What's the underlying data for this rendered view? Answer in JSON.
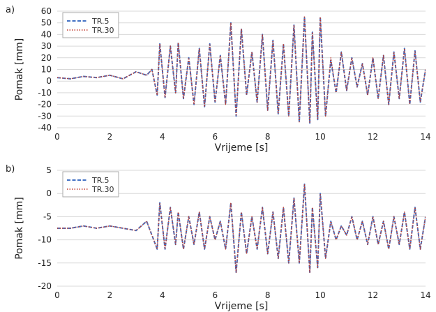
{
  "chart_data": [
    {
      "type": "line",
      "panel_label": "a)",
      "xlabel": "Vrijeme [s]",
      "ylabel": "Pomak [mm]",
      "xlim": [
        0,
        14
      ],
      "ylim": [
        -40,
        60
      ],
      "xticks": [
        0,
        2,
        4,
        6,
        8,
        10,
        12,
        14
      ],
      "yticks": [
        -40,
        -30,
        -20,
        -10,
        0,
        10,
        20,
        30,
        40,
        50,
        60
      ],
      "grid": "horizontal",
      "legend": "top-left",
      "series": [
        {
          "name": "TR.5",
          "color": "#4472c4",
          "style": "dashed",
          "x": [
            0,
            0.5,
            1,
            1.5,
            2,
            2.5,
            3,
            3.4,
            3.6,
            3.8,
            3.9,
            4.1,
            4.3,
            4.5,
            4.6,
            4.8,
            5.0,
            5.2,
            5.4,
            5.6,
            5.8,
            6.0,
            6.2,
            6.4,
            6.6,
            6.8,
            7.0,
            7.2,
            7.4,
            7.6,
            7.8,
            8.0,
            8.2,
            8.4,
            8.6,
            8.8,
            9.0,
            9.2,
            9.4,
            9.6,
            9.7,
            9.9,
            10.0,
            10.2,
            10.4,
            10.6,
            10.8,
            11.0,
            11.2,
            11.4,
            11.6,
            11.8,
            12.0,
            12.2,
            12.4,
            12.6,
            12.8,
            13.0,
            13.2,
            13.4,
            13.6,
            13.8,
            14.0
          ],
          "y": [
            3,
            2,
            4,
            3,
            5,
            2,
            8,
            5,
            10,
            -12,
            32,
            -14,
            30,
            -10,
            33,
            -15,
            20,
            -20,
            28,
            -22,
            32,
            -18,
            22,
            -20,
            50,
            -30,
            45,
            -12,
            25,
            -18,
            40,
            -25,
            35,
            -28,
            32,
            -30,
            48,
            -35,
            55,
            -36,
            42,
            -33,
            55,
            -30,
            18,
            -10,
            25,
            -8,
            20,
            -5,
            15,
            -12,
            20,
            -15,
            22,
            -20,
            25,
            -15,
            28,
            -20,
            26,
            -18,
            10
          ]
        },
        {
          "name": "TR.30",
          "color": "#c0392b",
          "style": "dotted",
          "x": [
            0,
            0.5,
            1,
            1.5,
            2,
            2.5,
            3,
            3.4,
            3.6,
            3.8,
            3.9,
            4.1,
            4.3,
            4.5,
            4.6,
            4.8,
            5.0,
            5.2,
            5.4,
            5.6,
            5.8,
            6.0,
            6.2,
            6.4,
            6.6,
            6.8,
            7.0,
            7.2,
            7.4,
            7.6,
            7.8,
            8.0,
            8.2,
            8.4,
            8.6,
            8.8,
            9.0,
            9.2,
            9.4,
            9.6,
            9.7,
            9.9,
            10.0,
            10.2,
            10.4,
            10.6,
            10.8,
            11.0,
            11.2,
            11.4,
            11.6,
            11.8,
            12.0,
            12.2,
            12.4,
            12.6,
            12.8,
            13.0,
            13.2,
            13.4,
            13.6,
            13.8,
            14.0
          ],
          "y": [
            3,
            2,
            4,
            3,
            5,
            2,
            8,
            5,
            10,
            -12,
            32,
            -14,
            30,
            -10,
            33,
            -15,
            20,
            -20,
            28,
            -22,
            32,
            -18,
            22,
            -20,
            50,
            -30,
            45,
            -12,
            25,
            -18,
            40,
            -25,
            35,
            -28,
            32,
            -30,
            48,
            -35,
            56,
            -36,
            42,
            -33,
            55,
            -30,
            20,
            -10,
            25,
            -8,
            20,
            -5,
            15,
            -12,
            20,
            -15,
            22,
            -20,
            25,
            -15,
            28,
            -20,
            26,
            -18,
            10
          ]
        }
      ]
    },
    {
      "type": "line",
      "panel_label": "b)",
      "xlabel": "Vrijeme [s]",
      "ylabel": "Pomak [mm]",
      "xlim": [
        0,
        14
      ],
      "ylim": [
        -20,
        5
      ],
      "xticks": [
        0,
        2,
        4,
        6,
        8,
        10,
        12,
        14
      ],
      "yticks": [
        -20,
        -15,
        -10,
        -5,
        0,
        5
      ],
      "grid": "horizontal",
      "legend": "top-left",
      "series": [
        {
          "name": "TR.5",
          "color": "#4472c4",
          "style": "dashed",
          "x": [
            0,
            0.5,
            1,
            1.5,
            2,
            2.5,
            3,
            3.4,
            3.6,
            3.8,
            3.9,
            4.1,
            4.3,
            4.5,
            4.6,
            4.8,
            5.0,
            5.2,
            5.4,
            5.6,
            5.8,
            6.0,
            6.2,
            6.4,
            6.6,
            6.8,
            7.0,
            7.2,
            7.4,
            7.6,
            7.8,
            8.0,
            8.2,
            8.4,
            8.6,
            8.8,
            9.0,
            9.2,
            9.4,
            9.6,
            9.7,
            9.9,
            10.0,
            10.2,
            10.4,
            10.6,
            10.8,
            11.0,
            11.2,
            11.4,
            11.6,
            11.8,
            12.0,
            12.2,
            12.4,
            12.6,
            12.8,
            13.0,
            13.2,
            13.4,
            13.6,
            13.8,
            14.0
          ],
          "y": [
            -7.5,
            -7.5,
            -7,
            -7.5,
            -7,
            -7.5,
            -8,
            -6,
            -9,
            -12,
            -2,
            -12,
            -3,
            -11,
            -4,
            -12,
            -5,
            -11,
            -4,
            -12,
            -5,
            -10,
            -6,
            -12,
            -2,
            -17,
            -4,
            -13,
            -5,
            -12,
            -3,
            -13,
            -4,
            -14,
            -3,
            -15,
            -1,
            -15,
            2,
            -17,
            -3,
            -16,
            0,
            -14,
            -6,
            -10,
            -7,
            -9,
            -5,
            -10,
            -6,
            -11,
            -5,
            -11,
            -6,
            -12,
            -5,
            -11,
            -4,
            -12,
            -3,
            -12,
            -5
          ]
        },
        {
          "name": "TR.30",
          "color": "#c0392b",
          "style": "dotted",
          "x": [
            0,
            0.5,
            1,
            1.5,
            2,
            2.5,
            3,
            3.4,
            3.6,
            3.8,
            3.9,
            4.1,
            4.3,
            4.5,
            4.6,
            4.8,
            5.0,
            5.2,
            5.4,
            5.6,
            5.8,
            6.0,
            6.2,
            6.4,
            6.6,
            6.8,
            7.0,
            7.2,
            7.4,
            7.6,
            7.8,
            8.0,
            8.2,
            8.4,
            8.6,
            8.8,
            9.0,
            9.2,
            9.4,
            9.6,
            9.7,
            9.9,
            10.0,
            10.2,
            10.4,
            10.6,
            10.8,
            11.0,
            11.2,
            11.4,
            11.6,
            11.8,
            12.0,
            12.2,
            12.4,
            12.6,
            12.8,
            13.0,
            13.2,
            13.4,
            13.6,
            13.8,
            14.0
          ],
          "y": [
            -7.5,
            -7.5,
            -7,
            -7.5,
            -7,
            -7.5,
            -8,
            -6,
            -9,
            -12,
            -2,
            -12,
            -3,
            -11,
            -4,
            -12,
            -5,
            -11,
            -4,
            -12,
            -5,
            -10,
            -6,
            -12,
            -2,
            -17,
            -4,
            -13,
            -5,
            -12,
            -3,
            -13,
            -4,
            -14,
            -3,
            -15,
            -1,
            -15,
            2,
            -17,
            -3,
            -16,
            0,
            -14,
            -6,
            -10,
            -7,
            -9,
            -5,
            -10,
            -6,
            -11,
            -5,
            -11,
            -6,
            -12,
            -5,
            -11,
            -4,
            -12,
            -3,
            -12,
            -5
          ]
        }
      ]
    }
  ]
}
